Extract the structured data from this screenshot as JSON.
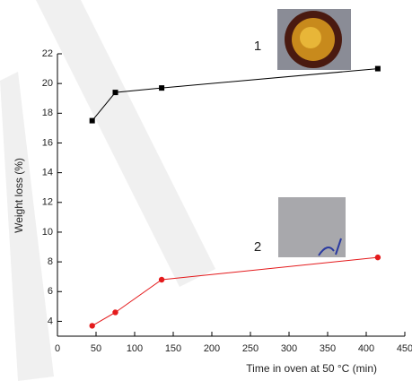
{
  "chart_data": {
    "type": "line",
    "x_label": "Time in oven at 50 °C (min)",
    "y_label": "Weight loss (%)",
    "xlim": [
      0,
      450
    ],
    "xticks": [
      0,
      50,
      100,
      150,
      200,
      250,
      300,
      350,
      400,
      450
    ],
    "ylim": [
      3,
      22
    ],
    "yticks": [
      4,
      6,
      8,
      10,
      12,
      14,
      16,
      18,
      20,
      22
    ],
    "series": [
      {
        "name": "1",
        "color": "#000000",
        "marker": "square",
        "x": [
          45,
          75,
          135,
          415
        ],
        "values": [
          17.5,
          19.4,
          19.7,
          21.0
        ]
      },
      {
        "name": "2",
        "color": "#e41a1c",
        "marker": "circle",
        "x": [
          45,
          75,
          135,
          415
        ],
        "values": [
          3.7,
          4.6,
          6.8,
          8.3
        ]
      }
    ]
  }
}
